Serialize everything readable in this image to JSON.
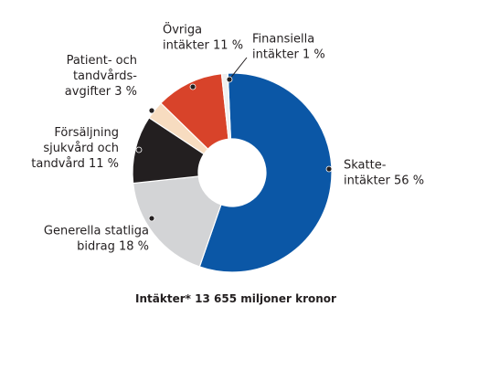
{
  "chart_data": {
    "type": "pie",
    "variant": "donut",
    "caption": "Intäkter* 13 655 miljoner kronor",
    "slices": [
      {
        "key": "skatt",
        "value": 56,
        "label_lines": [
          "Skatte-",
          "intäkter 56 %"
        ],
        "color": "#0b57a6"
      },
      {
        "key": "statsbidrag",
        "value": 18,
        "label_lines": [
          "Generella statliga",
          "bidrag 18 %"
        ],
        "color": "#d3d4d6"
      },
      {
        "key": "forsaljning",
        "value": 11,
        "label_lines": [
          "Försäljning",
          "sjukvård och",
          "tandvård 11 %"
        ],
        "color": "#231f20"
      },
      {
        "key": "patientavgifter",
        "value": 3,
        "label_lines": [
          "Patient- och",
          "tandvårds-",
          "avgifter 3 %"
        ],
        "color": "#f7dcc0"
      },
      {
        "key": "ovriga",
        "value": 11,
        "label_lines": [
          "Övriga",
          "intäkter 11 %"
        ],
        "color": "#d8432a"
      },
      {
        "key": "finansiella",
        "value": 1,
        "label_lines": [
          "Finansiella",
          "intäkter 1 %"
        ],
        "color": "#efefef"
      }
    ]
  }
}
